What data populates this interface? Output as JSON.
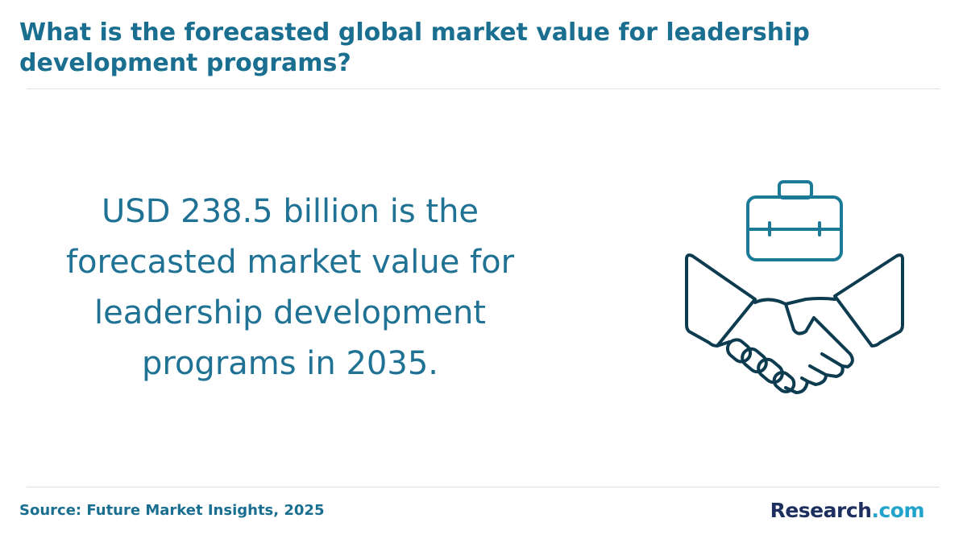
{
  "header": {
    "title": "What is the forecasted global market value for leadership development programs?"
  },
  "body": {
    "lines": [
      "USD 238.5 billion is the",
      "forecasted market value for",
      "leadership development",
      "programs in 2035."
    ]
  },
  "footer": {
    "source": "Source: Future Market Insights, 2025",
    "logo": [
      "Research",
      ".com"
    ]
  }
}
